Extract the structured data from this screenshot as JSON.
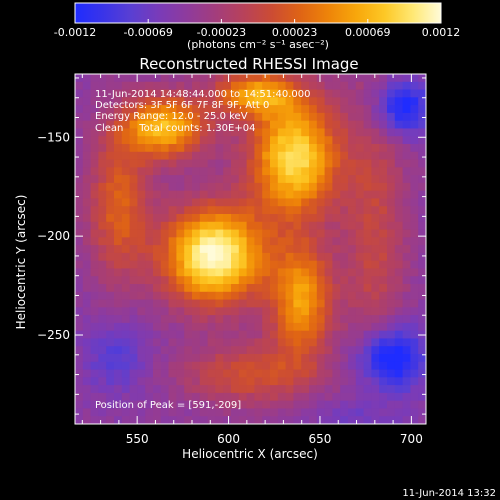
{
  "colorbar": {
    "tick_labels": [
      "-0.0012",
      "-0.00069",
      "-0.00023",
      "0.00023",
      "0.00069",
      "0.0012"
    ],
    "unit_label": "(photons cm⁻² s⁻¹ asec⁻²)",
    "range": [
      -0.0012,
      0.0012
    ],
    "colors": [
      "#1f2cff",
      "#3a34e8",
      "#5a3fd2",
      "#7a3bb8",
      "#8f3b9c",
      "#a33d7c",
      "#b8425a",
      "#cc4c33",
      "#df6415",
      "#ee8409",
      "#f8a70b",
      "#fdc826",
      "#ffe874",
      "#fffbd9"
    ]
  },
  "chart_data": {
    "type": "heatmap",
    "title": "Reconstructed RHESSI Image",
    "xlabel": "Heliocentric X (arcsec)",
    "ylabel": "Heliocentric Y (arcsec)",
    "xlim": [
      516,
      708
    ],
    "ylim": [
      -295,
      -118
    ],
    "x_ticks": [
      550,
      600,
      650,
      700
    ],
    "y_ticks": [
      -150,
      -200,
      -250
    ],
    "grid": false,
    "colormap": "blue-purple-red-yellow-white",
    "annotations": [
      "11-Jun-2014 14:48:44.000 to 14:51:40.000",
      "Detectors: 3F 5F 6F 7F 8F 9F, Att 0",
      "Energy Range: 12.0 - 25.0 keV",
      "Clean     Total counts: 1.30E+04",
      "Position of Peak = [591,-209]"
    ],
    "peak": {
      "x": 591,
      "y": -209
    },
    "sources": [
      {
        "x": 592,
        "y": -210,
        "sigma_x": 19,
        "sigma_y": 17,
        "amp": 1.0
      },
      {
        "x": 636,
        "y": -160,
        "sigma_x": 17,
        "sigma_y": 21,
        "amp": 0.84
      },
      {
        "x": 565,
        "y": -145,
        "sigma_x": 16,
        "sigma_y": 11,
        "amp": 0.72
      },
      {
        "x": 614,
        "y": -128,
        "sigma_x": 16,
        "sigma_y": 8,
        "amp": 0.58
      },
      {
        "x": 640,
        "y": -232,
        "sigma_x": 12,
        "sigma_y": 20,
        "amp": 0.62
      },
      {
        "x": 540,
        "y": -185,
        "sigma_x": 12,
        "sigma_y": 26,
        "amp": 0.42
      },
      {
        "x": 612,
        "y": -270,
        "sigma_x": 26,
        "sigma_y": 11,
        "amp": 0.35
      },
      {
        "x": 680,
        "y": -200,
        "sigma_x": 12,
        "sigma_y": 60,
        "amp": 0.28
      },
      {
        "x": 695,
        "y": -135,
        "sigma_x": 11,
        "sigma_y": 10,
        "amp": -0.48
      },
      {
        "x": 688,
        "y": -262,
        "sigma_x": 13,
        "sigma_y": 12,
        "amp": -0.58
      },
      {
        "x": 538,
        "y": -262,
        "sigma_x": 12,
        "sigma_y": 12,
        "amp": -0.22
      },
      {
        "x": 672,
        "y": -292,
        "sigma_x": 18,
        "sigma_y": 8,
        "amp": -0.18
      }
    ]
  },
  "footer": {
    "timestamp": "11-Jun-2014 13:32"
  }
}
